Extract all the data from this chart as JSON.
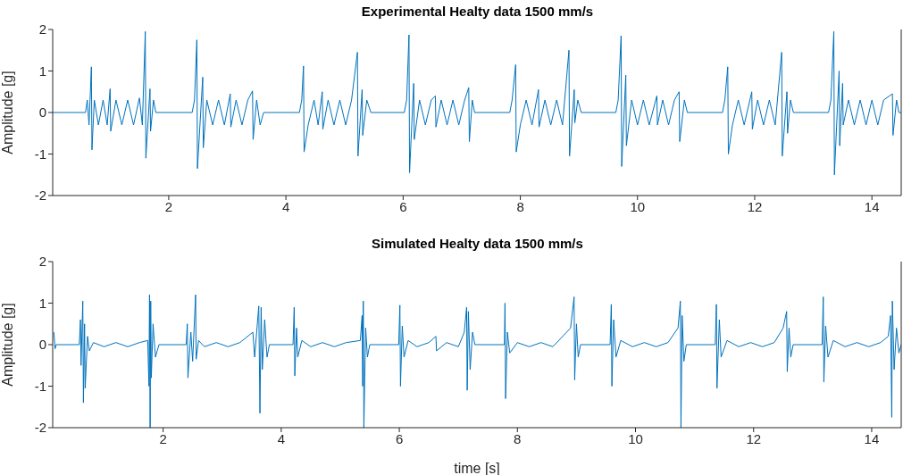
{
  "chart_data": [
    {
      "type": "line",
      "title": "Experimental Healty data 1500 mm/s",
      "ylabel": "Amplitude [g]",
      "color": "#0072bd",
      "xlim": [
        0.02,
        14.5
      ],
      "ylim": [
        -2,
        2
      ],
      "xticks": [
        2,
        4,
        6,
        8,
        10,
        12,
        14
      ],
      "yticks": [
        -2,
        -1,
        0,
        1,
        2
      ],
      "x": [
        0.02,
        0.58,
        0.61,
        0.64,
        0.68,
        0.69,
        0.73,
        0.8,
        0.88,
        0.95,
        1.0,
        1.01,
        1.1,
        1.2,
        1.3,
        1.4,
        1.5,
        1.55,
        1.6,
        1.61,
        1.68,
        1.69,
        1.74,
        1.78,
        2.4,
        2.44,
        2.48,
        2.49,
        2.58,
        2.59,
        2.65,
        2.75,
        2.85,
        2.95,
        3.05,
        3.06,
        3.15,
        3.25,
        3.35,
        3.43,
        3.44,
        3.5,
        3.56,
        3.62,
        4.23,
        4.27,
        4.3,
        4.31,
        4.38,
        4.48,
        4.55,
        4.62,
        4.63,
        4.72,
        4.82,
        4.92,
        5.02,
        5.12,
        5.22,
        5.23,
        5.3,
        5.31,
        5.38,
        5.45,
        6.02,
        6.06,
        6.1,
        6.11,
        6.18,
        6.19,
        6.28,
        6.38,
        6.48,
        6.55,
        6.56,
        6.65,
        6.75,
        6.85,
        6.95,
        7.05,
        7.12,
        7.13,
        7.18,
        7.22,
        7.82,
        7.86,
        7.92,
        7.93,
        8.0,
        8.1,
        8.2,
        8.31,
        8.32,
        8.42,
        8.52,
        8.62,
        8.72,
        8.83,
        8.84,
        8.92,
        8.93,
        8.98,
        9.04,
        9.63,
        9.67,
        9.72,
        9.73,
        9.8,
        9.81,
        9.9,
        10.0,
        10.1,
        10.2,
        10.33,
        10.34,
        10.43,
        10.53,
        10.63,
        10.71,
        10.72,
        10.8,
        10.85,
        11.45,
        11.49,
        11.54,
        11.55,
        11.62,
        11.72,
        11.82,
        11.95,
        11.96,
        12.05,
        12.15,
        12.25,
        12.35,
        12.46,
        12.47,
        12.55,
        12.56,
        12.61,
        12.66,
        13.26,
        13.3,
        13.35,
        13.36,
        13.44,
        13.45,
        13.5,
        13.51,
        13.6,
        13.7,
        13.8,
        13.9,
        14.0,
        14.1,
        14.2,
        14.35,
        14.36,
        14.42,
        14.46,
        14.5
      ],
      "values": [
        0,
        0,
        0.3,
        -0.3,
        1.1,
        -0.9,
        0.3,
        -0.3,
        0.3,
        -0.3,
        0.57,
        -0.45,
        0.3,
        -0.3,
        0.3,
        -0.3,
        0.35,
        -0.3,
        1.95,
        -1.1,
        0.57,
        -0.45,
        0.3,
        0,
        0,
        0.3,
        1.75,
        -1.35,
        0.85,
        -0.85,
        0.3,
        -0.3,
        0.3,
        -0.3,
        0.45,
        -0.35,
        0.3,
        -0.3,
        0.3,
        0.52,
        -0.65,
        0.3,
        -0.3,
        0,
        0,
        0.3,
        1.12,
        -0.95,
        -0.3,
        0.3,
        -0.3,
        0.5,
        -0.4,
        0.3,
        -0.3,
        0.3,
        -0.3,
        0.3,
        1.45,
        -1.05,
        0.55,
        -0.55,
        0.3,
        0,
        0,
        0.3,
        1.87,
        -1.45,
        0.7,
        -0.65,
        0.3,
        -0.3,
        0.3,
        0.4,
        -0.35,
        0.3,
        -0.3,
        0.3,
        -0.3,
        0.3,
        0.6,
        -0.7,
        0.3,
        0,
        0,
        0.3,
        1.15,
        -0.95,
        -0.3,
        0.3,
        -0.3,
        0.55,
        -0.35,
        0.3,
        -0.3,
        0.3,
        -0.3,
        1.5,
        -1.05,
        0.55,
        -0.25,
        0.3,
        0,
        0,
        0.3,
        1.85,
        -1.3,
        0.9,
        -0.8,
        0.3,
        -0.3,
        0.3,
        -0.3,
        0.4,
        -0.3,
        0.3,
        -0.3,
        0.3,
        0.5,
        -0.7,
        0.3,
        0,
        0,
        0.3,
        1.1,
        -1.0,
        -0.3,
        0.3,
        -0.3,
        0.5,
        -0.4,
        0.3,
        -0.3,
        0.3,
        -0.3,
        1.45,
        -1.05,
        0.5,
        -0.5,
        0.3,
        0,
        0,
        0.3,
        1.95,
        -1.5,
        1.0,
        -0.8,
        0.7,
        -0.3,
        0.3,
        -0.3,
        0.3,
        -0.3,
        0.3,
        -0.3,
        0.3,
        0.45,
        -0.55,
        0.3,
        0,
        0
      ]
    },
    {
      "type": "line",
      "title": "Simulated Healty data 1500 mm/s",
      "xlabel": "time [s]",
      "ylabel": "Amplitude [g]",
      "color": "#0072bd",
      "xlim": [
        0.13,
        14.5
      ],
      "ylim": [
        -2,
        2
      ],
      "xticks": [
        2,
        4,
        6,
        8,
        10,
        12,
        14
      ],
      "yticks": [
        -2,
        -1,
        0,
        1,
        2
      ],
      "x": [
        0.15,
        0.17,
        0.19,
        0.58,
        0.6,
        0.61,
        0.64,
        0.65,
        0.67,
        0.68,
        0.72,
        0.75,
        0.82,
        1.0,
        1.2,
        1.4,
        1.6,
        1.74,
        1.76,
        1.77,
        1.78,
        1.79,
        1.8,
        1.83,
        1.87,
        1.93,
        2.39,
        2.41,
        2.42,
        2.47,
        2.5,
        2.55,
        2.56,
        2.6,
        2.7,
        2.9,
        3.1,
        3.3,
        3.52,
        3.55,
        3.62,
        3.64,
        3.66,
        3.68,
        3.72,
        3.76,
        3.8,
        4.2,
        4.22,
        4.23,
        4.26,
        4.28,
        4.35,
        4.5,
        4.7,
        4.9,
        5.1,
        5.34,
        5.37,
        5.38,
        5.39,
        5.4,
        5.43,
        5.46,
        5.5,
        5.99,
        6.01,
        6.02,
        6.05,
        6.08,
        6.15,
        6.3,
        6.5,
        6.62,
        6.63,
        6.8,
        7.0,
        7.1,
        7.14,
        7.15,
        7.17,
        7.2,
        7.24,
        7.28,
        7.78,
        7.79,
        7.8,
        7.83,
        7.87,
        8.0,
        8.2,
        8.4,
        8.6,
        8.9,
        8.96,
        8.97,
        9.0,
        9.03,
        9.07,
        9.57,
        9.59,
        9.6,
        9.63,
        9.67,
        9.75,
        9.95,
        10.15,
        10.35,
        10.55,
        10.72,
        10.76,
        10.77,
        10.79,
        10.82,
        10.86,
        11.35,
        11.37,
        11.38,
        11.42,
        11.45,
        11.55,
        11.75,
        11.95,
        12.15,
        12.35,
        12.5,
        12.56,
        12.57,
        12.6,
        12.63,
        12.67,
        13.16,
        13.18,
        13.19,
        13.22,
        13.26,
        13.35,
        13.55,
        13.75,
        13.95,
        14.15,
        14.28,
        14.32,
        14.34,
        14.35,
        14.38,
        14.42,
        14.46,
        14.5
      ],
      "values": [
        0.3,
        -0.1,
        0,
        0,
        0.6,
        -0.5,
        1.05,
        -1.4,
        0.5,
        -1.05,
        0.2,
        -0.15,
        0.05,
        -0.05,
        0.05,
        -0.05,
        0.05,
        0.1,
        -1.0,
        1.2,
        -2.0,
        1.05,
        -0.8,
        0.5,
        -0.3,
        0,
        0,
        0.5,
        -0.8,
        0.3,
        -0.4,
        1.2,
        -0.35,
        0.1,
        -0.05,
        0.05,
        -0.05,
        0.05,
        0.3,
        -0.3,
        0.93,
        -1.65,
        0.9,
        -0.6,
        0.6,
        -0.3,
        0,
        0,
        0.9,
        -0.75,
        0.4,
        -0.3,
        0.1,
        -0.05,
        0.05,
        -0.05,
        0.05,
        0.1,
        0.7,
        -1.0,
        1.05,
        -2.0,
        0.4,
        -0.3,
        0,
        0,
        0.95,
        -1.0,
        0.45,
        -0.3,
        0.1,
        -0.05,
        0.05,
        0.2,
        -0.15,
        0.05,
        -0.05,
        0.3,
        0.9,
        -1.1,
        0.8,
        -0.6,
        0.3,
        0,
        0,
        1.0,
        -1.3,
        0.3,
        -0.2,
        0.05,
        -0.05,
        0.05,
        -0.05,
        0.4,
        1.15,
        -0.85,
        0.5,
        -0.3,
        0,
        0,
        0.97,
        -1.0,
        0.6,
        -0.3,
        0.1,
        -0.05,
        0.05,
        -0.05,
        0.05,
        0.4,
        1.05,
        -2.0,
        0.7,
        -0.4,
        0,
        0,
        0.97,
        -1.05,
        0.6,
        -0.3,
        0.1,
        -0.05,
        0.05,
        -0.05,
        0.05,
        0.4,
        0.8,
        -0.65,
        0.4,
        -0.3,
        0,
        0,
        1.15,
        -0.9,
        0.45,
        -0.3,
        0.1,
        -0.05,
        0.05,
        -0.05,
        0.05,
        0.2,
        0.7,
        -1.75,
        1.05,
        -0.6,
        0.4,
        -0.2,
        0
      ]
    }
  ]
}
